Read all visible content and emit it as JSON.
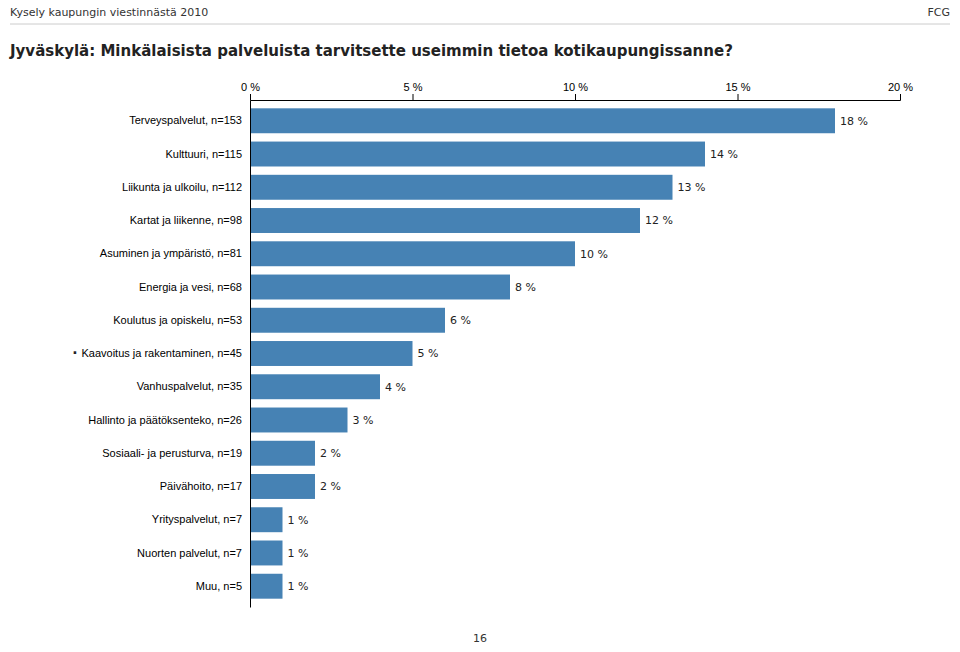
{
  "chart_data": {
    "type": "bar",
    "orientation": "horizontal",
    "title": "Jyväskylä: Minkälaisista palveluista tarvitsette useimmin tietoa kotikaupungissanne?",
    "annotations": [
      {
        "text": "Kysely kaupungin viestinnästä 2010"
      },
      {
        "text": "FCG"
      },
      {
        "text": "16"
      },
      {
        "text": "·",
        "category": "Kaavoitus ja rakentaminen, n=45"
      }
    ],
    "categories": [
      "Terveyspalvelut, n=153",
      "Kulttuuri, n=115",
      "Liikunta ja ulkoilu, n=112",
      "Kartat ja liikenne, n=98",
      "Asuminen ja ympäristö, n=81",
      "Energia ja vesi, n=68",
      "Koulutus ja opiskelu, n=53",
      "Kaavoitus ja rakentaminen, n=45",
      "Vanhuspalvelut, n=35",
      "Hallinto ja päätöksenteko, n=26",
      "Sosiaali- ja perusturva, n=19",
      "Päivähoito, n=17",
      "Yrityspalvelut, n=7",
      "Nuorten palvelut, n=7",
      "Muu, n=5"
    ],
    "values": [
      18,
      14,
      13,
      12,
      10,
      8,
      6,
      5,
      4,
      3,
      2,
      2,
      1,
      1,
      1
    ],
    "value_labels": [
      "18 %",
      "14 %",
      "13 %",
      "12 %",
      "10 %",
      "8 %",
      "6 %",
      "5 %",
      "4 %",
      "3 %",
      "2 %",
      "2 %",
      "1 %",
      "1 %",
      "1 %"
    ],
    "data_labels": true,
    "color": "steelblue",
    "xlim": [
      0,
      20
    ],
    "xticks": [
      {
        "value": 0,
        "label": "0 %"
      },
      {
        "value": 5,
        "label": "5 %"
      },
      {
        "value": 10,
        "label": "10 %"
      },
      {
        "value": 15,
        "label": "15 %"
      },
      {
        "value": 20,
        "label": "20 %"
      }
    ],
    "grid": false
  }
}
